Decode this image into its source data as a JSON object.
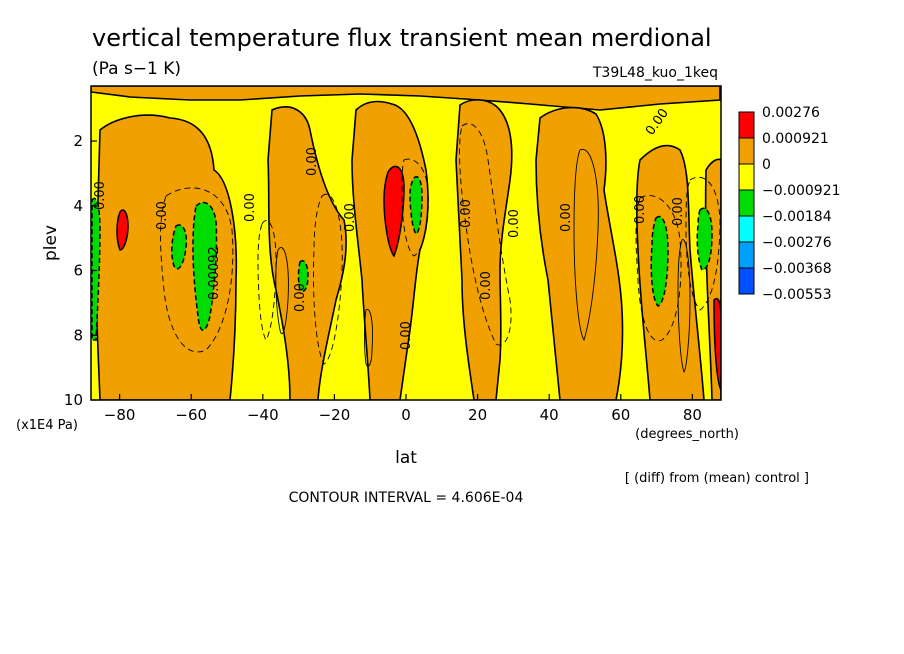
{
  "chart_data": {
    "type": "heatmap",
    "title": "vertical temperature flux transient mean merdional",
    "units": "(Pa s−1 K)",
    "run_label": "T39L48_kuo_1keq",
    "xlabel": "lat",
    "xunits": "(degrees_north)",
    "ylabel": "plev",
    "yunits": "(x1E4 Pa)",
    "xlim": [
      -88,
      88
    ],
    "ylim": [
      10,
      0.3
    ],
    "x_ticks": [
      -80,
      -60,
      -40,
      -20,
      0,
      20,
      40,
      60,
      80
    ],
    "y_ticks": [
      2,
      4,
      6,
      8,
      10
    ],
    "grid": false,
    "legend_position": "right",
    "legend": [
      {
        "label": "0.00276",
        "color": "#ff0000"
      },
      {
        "label": "0.000921",
        "color": "#f0a000"
      },
      {
        "label": "0",
        "color": "#ffff00"
      },
      {
        "label": "−0.000921",
        "color": "#00dc00"
      },
      {
        "label": "−0.00184",
        "color": "#00ffff"
      },
      {
        "label": "−0.00276",
        "color": "#00a0ff"
      },
      {
        "label": "−0.00368",
        "color": "#0050ff"
      },
      {
        "label": "−0.00553",
        "color": null
      }
    ],
    "contour_labels": [
      "0.00",
      "0.00092"
    ],
    "footnote": "[ (diff) from (mean) control ]",
    "contour_interval": "CONTOUR INTERVAL = 4.606E-04"
  }
}
